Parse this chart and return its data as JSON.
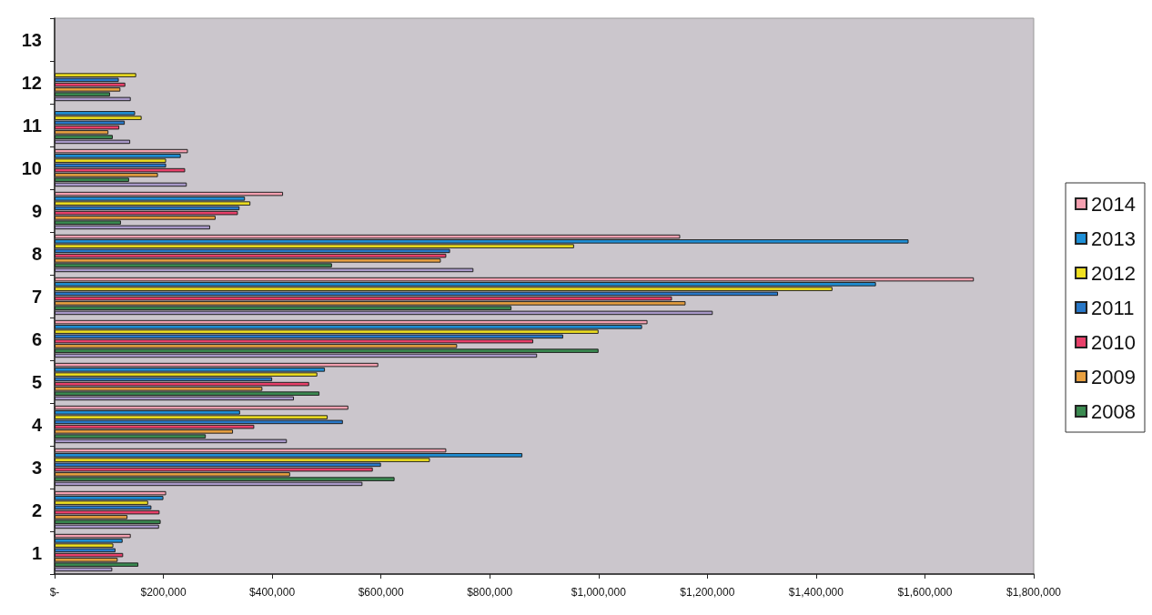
{
  "chart_data": {
    "type": "bar",
    "orientation": "horizontal",
    "categories": [
      "13",
      "12",
      "11",
      "10",
      "9",
      "8",
      "7",
      "6",
      "5",
      "4",
      "3",
      "2",
      "1"
    ],
    "xlim": [
      0,
      1800000
    ],
    "xticks": [
      {
        "value": 0,
        "label": "$-"
      },
      {
        "value": 200000,
        "label": "$200,000"
      },
      {
        "value": 400000,
        "label": "$400,000"
      },
      {
        "value": 600000,
        "label": "$600,000"
      },
      {
        "value": 800000,
        "label": "$800,000"
      },
      {
        "value": 1000000,
        "label": "$1,000,000"
      },
      {
        "value": 1200000,
        "label": "$1,200,000"
      },
      {
        "value": 1400000,
        "label": "$1,400,000"
      },
      {
        "value": 1600000,
        "label": "$1,600,000"
      },
      {
        "value": 1800000,
        "label": "$1,800,000"
      }
    ],
    "grid": false,
    "legend": "right",
    "series": [
      {
        "name": "2014",
        "color": "#f4a0b0",
        "values": [
          null,
          null,
          null,
          245000,
          420000,
          1150000,
          1690000,
          1090000,
          595000,
          540000,
          720000,
          205000,
          140000
        ]
      },
      {
        "name": "2013",
        "color": "#1e90d8",
        "values": [
          null,
          null,
          148000,
          232000,
          350000,
          1570000,
          1510000,
          1080000,
          497000,
          341000,
          860000,
          200000,
          125000
        ]
      },
      {
        "name": "2012",
        "color": "#f0e020",
        "values": [
          null,
          150000,
          160000,
          205000,
          360000,
          955000,
          1430000,
          1000000,
          483000,
          502000,
          690000,
          172000,
          108000
        ]
      },
      {
        "name": "2011",
        "color": "#2878c8",
        "values": [
          null,
          118000,
          129000,
          205000,
          340000,
          727000,
          1330000,
          935000,
          400000,
          530000,
          600000,
          178000,
          112000
        ]
      },
      {
        "name": "2010",
        "color": "#e8406a",
        "values": [
          null,
          130000,
          119000,
          240000,
          337000,
          720000,
          1135000,
          880000,
          468000,
          367000,
          585000,
          193000,
          126000
        ]
      },
      {
        "name": "2009",
        "color": "#e8a040",
        "values": [
          null,
          121000,
          99000,
          190000,
          296000,
          710000,
          1160000,
          740000,
          382000,
          328000,
          433000,
          134000,
          116000
        ]
      },
      {
        "name": "2008",
        "color": "#3a8a50",
        "values": [
          null,
          102000,
          107000,
          137000,
          122000,
          510000,
          840000,
          1000000,
          487000,
          278000,
          625000,
          195000,
          154000
        ]
      },
      {
        "color": "#a898c8",
        "values": [
          null,
          140000,
          139000,
          243000,
          286000,
          770000,
          1210000,
          887000,
          440000,
          427000,
          566000,
          192000,
          106000
        ]
      }
    ]
  }
}
